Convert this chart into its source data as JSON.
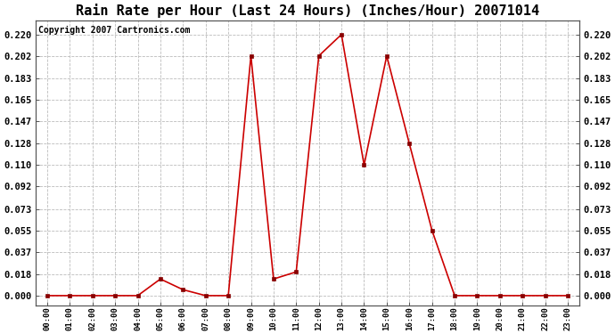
{
  "title": "Rain Rate per Hour (Last 24 Hours) (Inches/Hour) 20071014",
  "copyright": "Copyright 2007 Cartronics.com",
  "x_labels": [
    "00:00",
    "01:00",
    "02:00",
    "03:00",
    "04:00",
    "05:00",
    "06:00",
    "07:00",
    "08:00",
    "09:00",
    "10:00",
    "11:00",
    "12:00",
    "13:00",
    "14:00",
    "15:00",
    "16:00",
    "17:00",
    "18:00",
    "19:00",
    "20:00",
    "21:00",
    "22:00",
    "23:00"
  ],
  "y_values": [
    0.0,
    0.0,
    0.0,
    0.0,
    0.0,
    0.014,
    0.005,
    0.0,
    0.0,
    0.202,
    0.014,
    0.02,
    0.202,
    0.22,
    0.11,
    0.202,
    0.128,
    0.055,
    0.0,
    0.0,
    0.0,
    0.0,
    0.0,
    0.0
  ],
  "line_color": "#cc0000",
  "marker_color": "#880000",
  "background_color": "#ffffff",
  "grid_color": "#bbbbbb",
  "yticks": [
    0.0,
    0.018,
    0.037,
    0.055,
    0.073,
    0.092,
    0.11,
    0.128,
    0.147,
    0.165,
    0.183,
    0.202,
    0.22
  ],
  "ylim": [
    -0.008,
    0.232
  ],
  "title_fontsize": 11,
  "copyright_fontsize": 7,
  "tick_fontsize": 7.5,
  "xtick_fontsize": 6.5
}
